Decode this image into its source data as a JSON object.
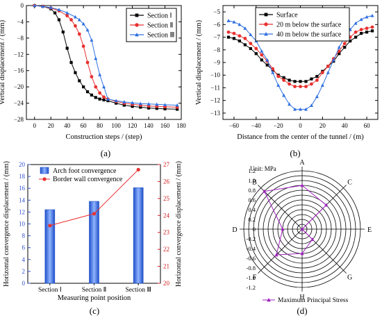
{
  "figure_labels": [
    "(a)",
    "(b)",
    "(c)",
    "(d)"
  ],
  "colors": {
    "black": "#000000",
    "red": "#e8312f",
    "blue": "#2f6fe0",
    "purple": "#a020c0",
    "bar": "#3f7cf0"
  },
  "chart_data": [
    {
      "panel": "a",
      "type": "line",
      "xlabel": "Construction steps / (step)",
      "ylabel": "Vertical displacement / (mm)",
      "xlim": [
        -10,
        180
      ],
      "ylim": [
        -28,
        0
      ],
      "xticks": [
        0,
        20,
        40,
        60,
        80,
        100,
        120,
        140,
        160,
        180
      ],
      "yticks": [
        0,
        -4,
        -8,
        -12,
        -16,
        -20,
        -24,
        -28
      ],
      "legend_position": "top-right",
      "series": [
        {
          "name": "Section Ⅰ",
          "color": "#000000",
          "marker": "square",
          "x": [
            0,
            10,
            20,
            25,
            30,
            35,
            40,
            45,
            50,
            55,
            60,
            65,
            70,
            75,
            80,
            85,
            90,
            100,
            110,
            120,
            130,
            140,
            150,
            160,
            175
          ],
          "y": [
            0,
            -0.2,
            -0.8,
            -1.8,
            -3.5,
            -6.5,
            -10.5,
            -14,
            -16.5,
            -18.5,
            -20,
            -21.2,
            -22,
            -22.6,
            -23,
            -23.2,
            -23.4,
            -24,
            -24.5,
            -24.8,
            -25,
            -25.2,
            -25.3,
            -25.4,
            -25.5
          ]
        },
        {
          "name": "Section Ⅱ",
          "color": "#e8312f",
          "marker": "circle",
          "x": [
            0,
            10,
            20,
            30,
            40,
            45,
            50,
            55,
            60,
            65,
            70,
            75,
            80,
            85,
            90,
            100,
            110,
            120,
            130,
            140,
            150,
            160,
            175
          ],
          "y": [
            0,
            -0.2,
            -0.6,
            -1.3,
            -2.5,
            -3.5,
            -5,
            -7,
            -10,
            -14,
            -17.5,
            -20,
            -21.5,
            -22.5,
            -23,
            -23.6,
            -24,
            -24.3,
            -24.5,
            -24.7,
            -24.8,
            -24.9,
            -25
          ]
        },
        {
          "name": "Section Ⅲ",
          "color": "#2f6fe0",
          "marker": "triangle",
          "x": [
            0,
            10,
            20,
            30,
            40,
            50,
            55,
            60,
            65,
            70,
            75,
            80,
            85,
            90,
            100,
            110,
            120,
            130,
            140,
            150,
            160,
            175
          ],
          "y": [
            0,
            -0.2,
            -0.5,
            -1,
            -1.8,
            -2.8,
            -3.5,
            -4.5,
            -6,
            -8.5,
            -13,
            -17,
            -20,
            -23,
            -23.4,
            -23.7,
            -23.9,
            -24.1,
            -24.2,
            -24.3,
            -24.4,
            -24.5
          ]
        }
      ]
    },
    {
      "panel": "b",
      "type": "line",
      "xlabel": "Distance from the center of the tunnel / (m)",
      "ylabel": "Vertical displacement / (mm)",
      "xlim": [
        -70,
        70
      ],
      "ylim": [
        -13.5,
        -4.5
      ],
      "xticks": [
        -60,
        -40,
        -20,
        0,
        20,
        40,
        60
      ],
      "yticks": [
        -5,
        -6,
        -7,
        -8,
        -9,
        -10,
        -11,
        -12,
        -13
      ],
      "legend_position": "top-left",
      "series": [
        {
          "name": "Surface",
          "color": "#000000",
          "marker": "square",
          "x": [
            -65,
            -60,
            -55,
            -50,
            -45,
            -40,
            -35,
            -30,
            -25,
            -20,
            -15,
            -10,
            -5,
            0,
            5,
            10,
            15,
            20,
            25,
            30,
            35,
            40,
            45,
            50,
            55,
            60,
            65
          ],
          "y": [
            -7,
            -7.1,
            -7.3,
            -7.6,
            -7.9,
            -8.3,
            -8.8,
            -9.2,
            -9.6,
            -10,
            -10.2,
            -10.4,
            -10.5,
            -10.5,
            -10.5,
            -10.3,
            -10.1,
            -9.7,
            -9.3,
            -8.9,
            -8.3,
            -7.8,
            -7.3,
            -7,
            -6.7,
            -6.6,
            -6.5
          ]
        },
        {
          "name": "20 m below the surface",
          "color": "#e8312f",
          "marker": "circle",
          "x": [
            -65,
            -60,
            -55,
            -50,
            -45,
            -40,
            -35,
            -30,
            -25,
            -20,
            -15,
            -10,
            -5,
            0,
            5,
            10,
            15,
            20,
            25,
            30,
            35,
            40,
            45,
            50,
            55,
            60,
            65
          ],
          "y": [
            -6.6,
            -6.7,
            -6.9,
            -7.1,
            -7.5,
            -7.9,
            -8.4,
            -8.9,
            -9.5,
            -10.1,
            -10.4,
            -10.7,
            -10.9,
            -10.9,
            -10.9,
            -10.7,
            -10.4,
            -9.8,
            -9.3,
            -8.7,
            -8.1,
            -7.5,
            -7,
            -6.6,
            -6.4,
            -6.3,
            -6.2
          ]
        },
        {
          "name": "40 m below the surface",
          "color": "#2f6fe0",
          "marker": "triangle",
          "x": [
            -65,
            -60,
            -55,
            -50,
            -45,
            -40,
            -35,
            -30,
            -25,
            -20,
            -15,
            -10,
            -5,
            0,
            5,
            10,
            15,
            20,
            25,
            30,
            35,
            40,
            45,
            50,
            55,
            60,
            65
          ],
          "y": [
            -5.7,
            -5.8,
            -6,
            -6.3,
            -6.8,
            -7.3,
            -8.1,
            -8.8,
            -9.8,
            -10.8,
            -11.6,
            -12.3,
            -12.7,
            -12.7,
            -12.7,
            -12.4,
            -11.7,
            -10.8,
            -9.8,
            -8.8,
            -7.8,
            -7,
            -6.4,
            -5.9,
            -5.6,
            -5.4,
            -5.3
          ]
        }
      ]
    },
    {
      "panel": "c",
      "type": "bar",
      "xlabel": "Measuring point position",
      "ylabel_left": "Horizontal convergence displacement / (mm)",
      "ylabel_right": "Horizontal convergence displacement / (mm)",
      "categories": [
        "Section Ⅰ",
        "Section Ⅱ",
        "Section Ⅲ"
      ],
      "ylim_left": [
        0,
        20
      ],
      "ylim_right": [
        20,
        27
      ],
      "yticks_left": [
        0,
        2,
        4,
        6,
        8,
        10,
        12,
        14,
        16,
        18,
        20
      ],
      "yticks_right": [
        20,
        21,
        22,
        23,
        24,
        25,
        26,
        27
      ],
      "legend_position": "top-left",
      "series": [
        {
          "name": "Arch foot convergence",
          "type": "bar",
          "axis": "left",
          "color": "#3f7cf0",
          "values": [
            12.4,
            13.8,
            16.1
          ]
        },
        {
          "name": "Border wall convergence",
          "type": "line",
          "axis": "right",
          "color": "#e8312f",
          "values": [
            23.4,
            24.1,
            26.7
          ]
        }
      ]
    },
    {
      "panel": "d",
      "type": "radar",
      "unit_label": "Unit: MPa",
      "directions": [
        "A",
        "C",
        "E",
        "G",
        "H",
        "F",
        "D",
        "B"
      ],
      "radial_scale_labels": [
        "1.2",
        "1.0",
        "0.8",
        "0.6",
        "0.4",
        "0.2",
        "0",
        "-0.2",
        "-0.4",
        "-0.6",
        "-0.8",
        "-1.0",
        "-1.2"
      ],
      "rlim": [
        -1.2,
        1.2
      ],
      "legend_position": "bottom",
      "series": [
        {
          "name": "Maximum Principal Stress",
          "color": "#a020c0",
          "marker": "triangle",
          "values": [
            0.6,
            0.2,
            -1.2,
            -0.6,
            -0.2,
            0.3,
            -0.4,
            1.0
          ]
        }
      ]
    }
  ]
}
